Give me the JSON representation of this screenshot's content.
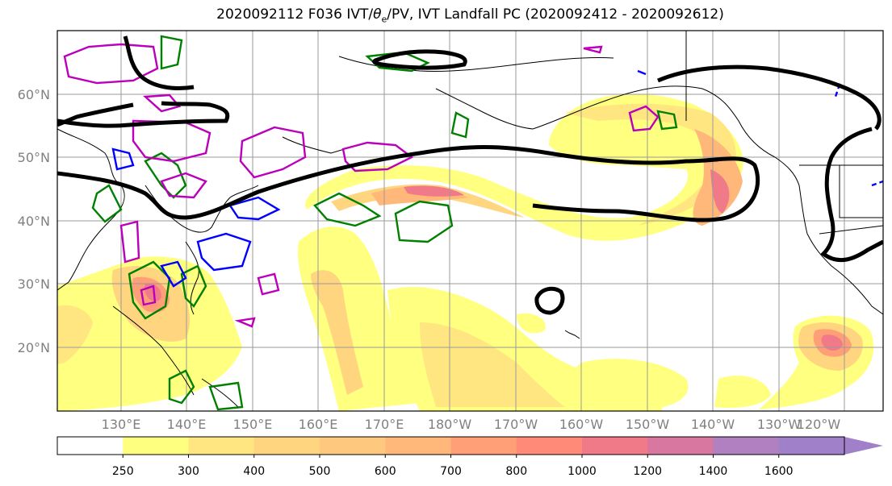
{
  "title": {
    "main": "2020092112 F036 IVT/",
    "theta": "θ",
    "theta_sub": "e",
    "rest": "/PV, IVT Landfall PC (2020092412 - 2020092612)"
  },
  "lat_labels": [
    "60°N",
    "50°N",
    "40°N",
    "30°N",
    "20°N"
  ],
  "lon_labels": [
    "130°E",
    "140°E",
    "150°E",
    "160°E",
    "170°E",
    "180°W",
    "170°W",
    "160°W",
    "150°W",
    "140°W",
    "130°W",
    "120°W"
  ],
  "colorbar": {
    "ticks": [
      "250",
      "300",
      "400",
      "500",
      "600",
      "700",
      "800",
      "1000",
      "1200",
      "1400",
      "1600"
    ],
    "colors": [
      "#ffffff",
      "#ffff7f",
      "#ffe680",
      "#ffd580",
      "#ffc87f",
      "#ffb87a",
      "#ff9f78",
      "#ff8a78",
      "#f07a88",
      "#d878a0",
      "#b080c0",
      "#a080c8"
    ]
  },
  "contour_colors": {
    "ivt_landfall_pc": "#000000",
    "pv": "#008000",
    "theta_e_low": "#0000ff",
    "theta_e_high": "#bb00bb"
  }
}
